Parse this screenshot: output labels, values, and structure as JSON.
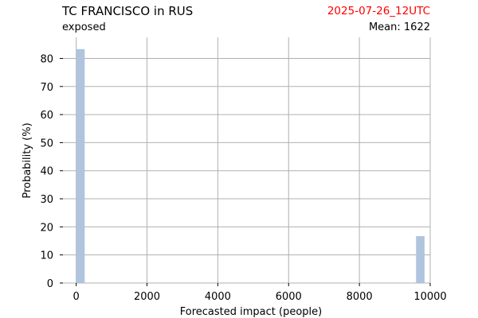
{
  "header": {
    "title": "TC FRANCISCO in RUS",
    "subtitle": "exposed",
    "run_date": "2025-07-26_12UTC",
    "mean_label": "Mean:",
    "mean_value": "1622"
  },
  "colors": {
    "bar": "#b0c4de",
    "run_date": "#ff0000",
    "grid": "#b0b0b0"
  },
  "chart_data": {
    "type": "bar",
    "xlabel": "Forecasted impact (people)",
    "ylabel": "Probability (%)",
    "xlim": [
      -375,
      10000
    ],
    "ylim": [
      0,
      87.5
    ],
    "xticks": [
      0,
      2000,
      4000,
      6000,
      8000,
      10000
    ],
    "yticks": [
      0,
      10,
      20,
      30,
      40,
      50,
      60,
      70,
      80
    ],
    "grid": true,
    "bin_width": 240,
    "bars": [
      {
        "x": 0,
        "value": 83.3
      },
      {
        "x": 9600,
        "value": 16.7
      }
    ]
  }
}
